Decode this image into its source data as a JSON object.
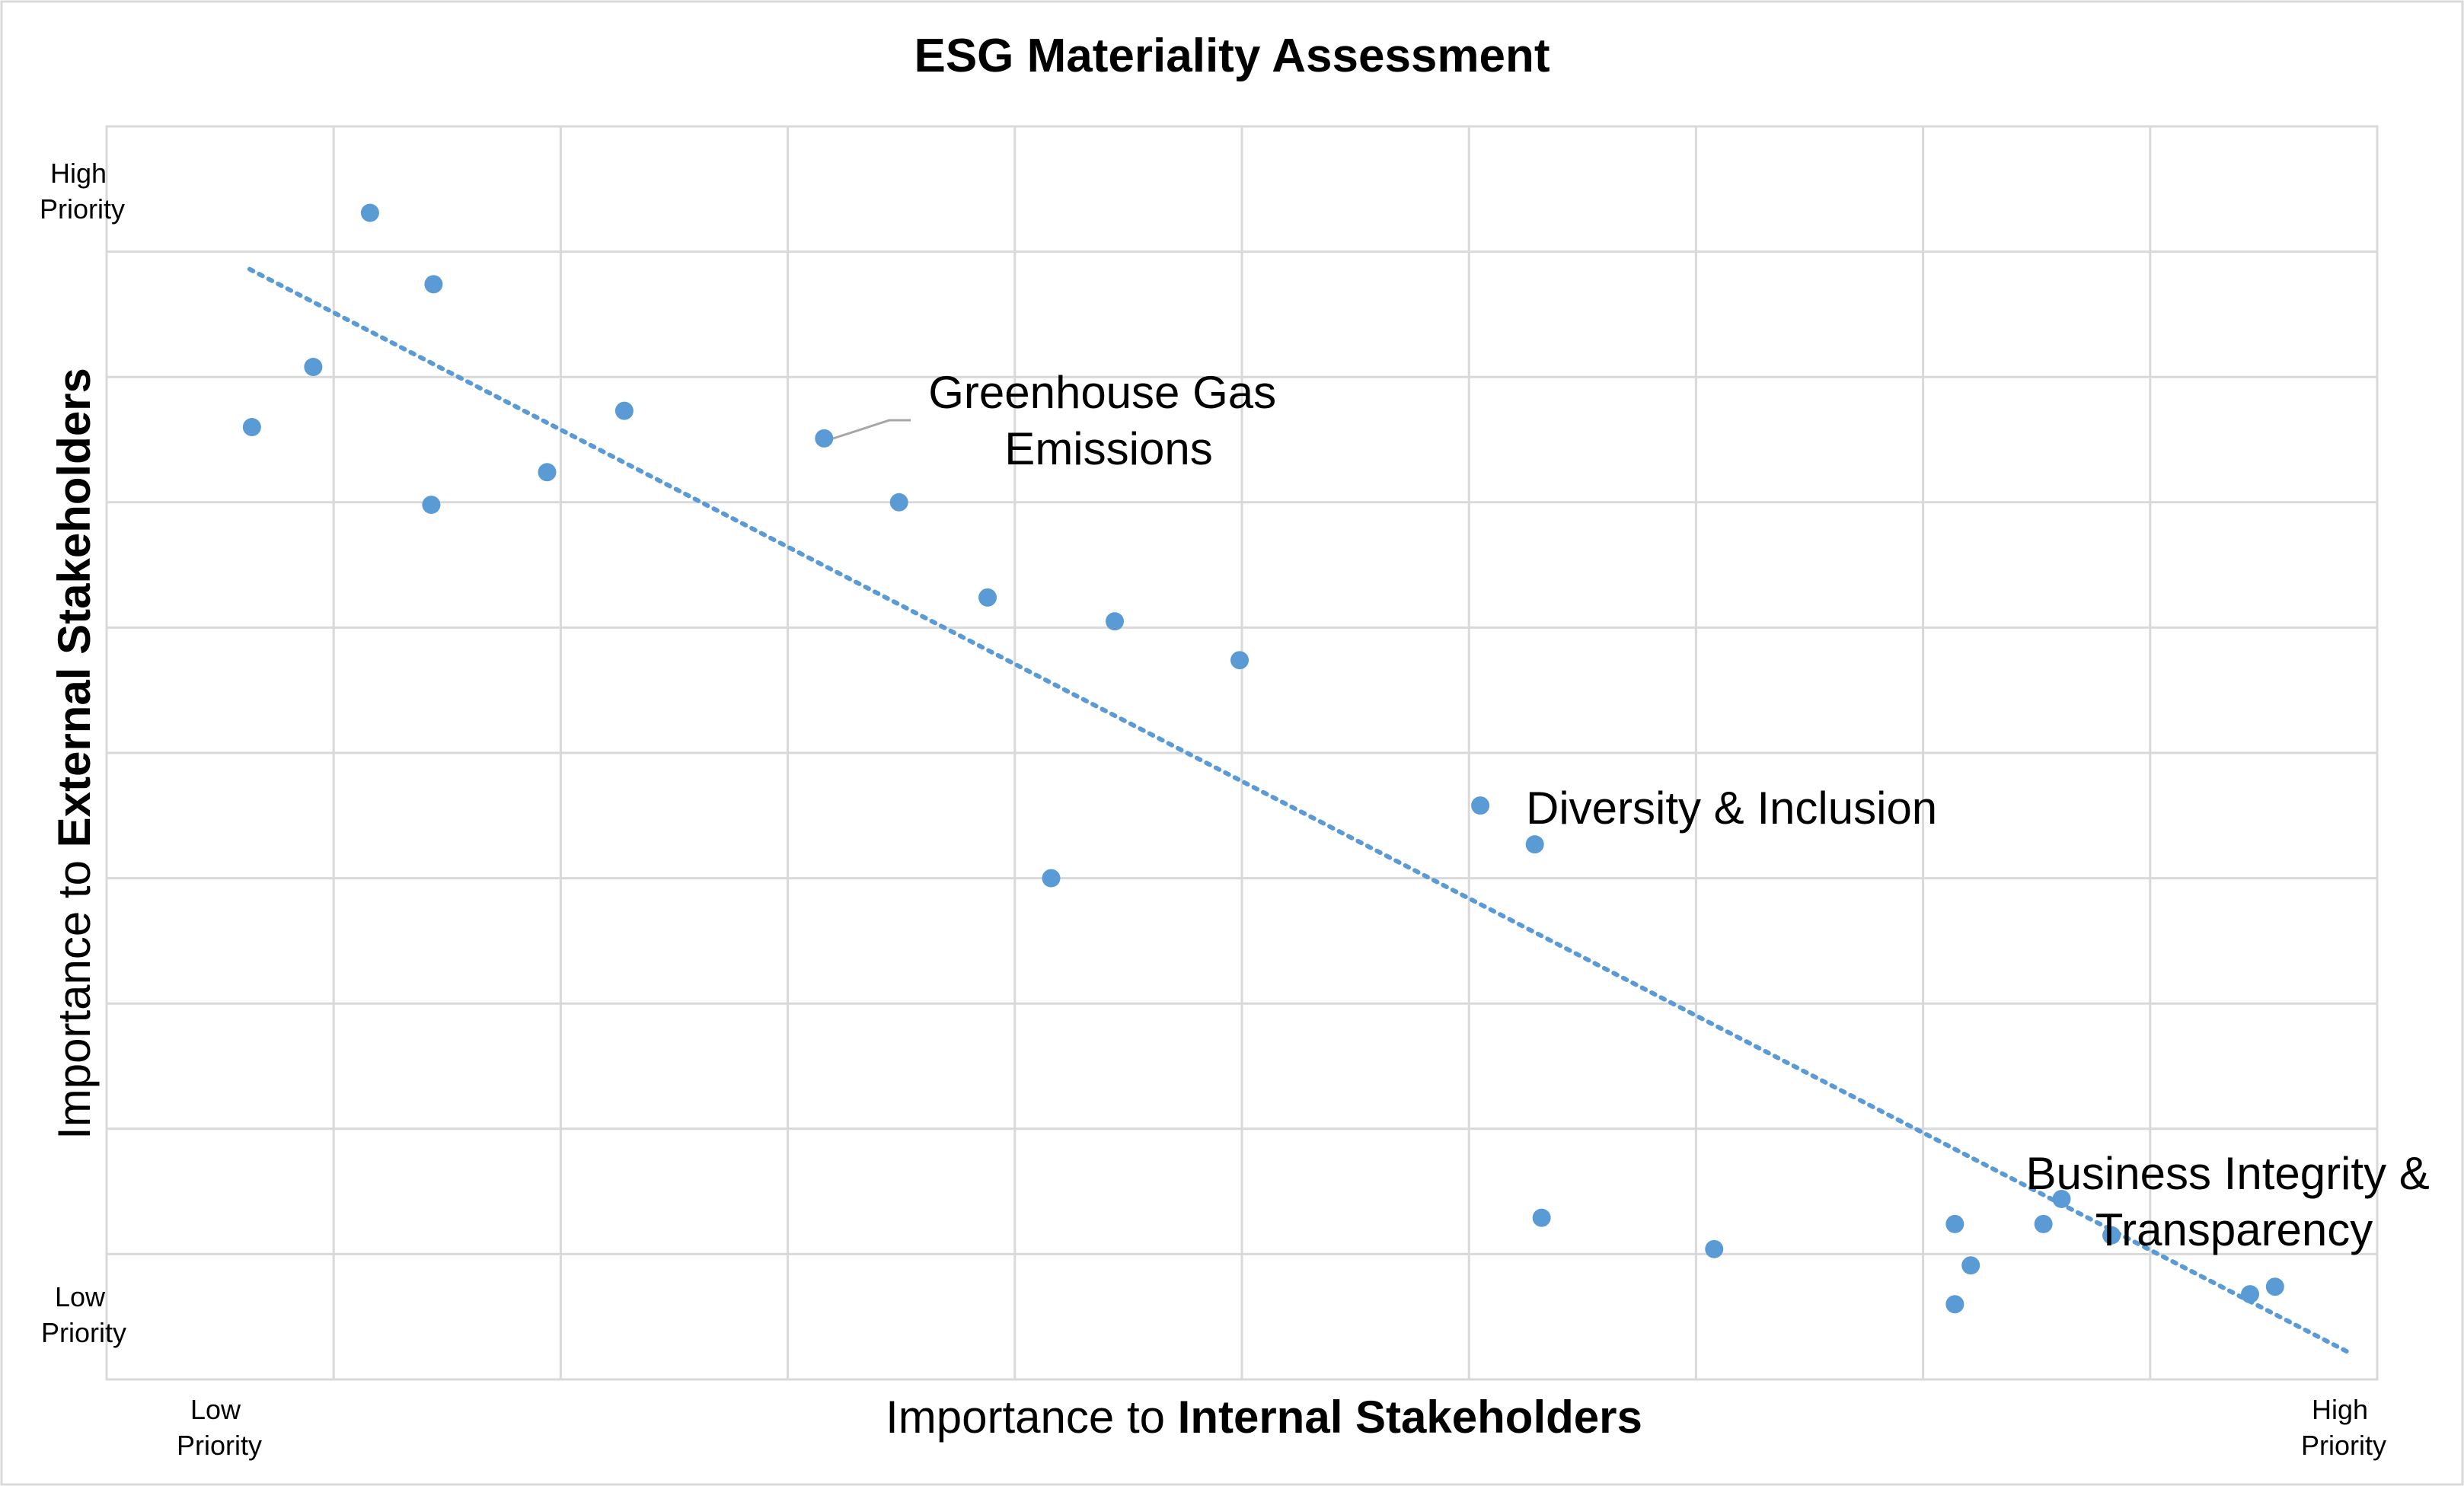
{
  "chart_data": {
    "type": "scatter",
    "title": "ESG Materiality Assessment",
    "xlabel": {
      "prefix": "Importance to ",
      "bold": "Internal Stakeholders"
    },
    "ylabel": {
      "prefix": "Importance to ",
      "bold": "External Stakeholders"
    },
    "x_tick_labels": {
      "low": [
        "Low",
        "Priority"
      ],
      "high": [
        "High",
        "Priority"
      ]
    },
    "y_tick_labels": {
      "low": [
        "Low",
        "Priority"
      ],
      "high": [
        "High",
        "Priority"
      ]
    },
    "xlim": [
      0,
      10
    ],
    "ylim": [
      0,
      10
    ],
    "grid": true,
    "marker_color": "#5b9bd5",
    "trendline": {
      "style": "dotted",
      "color": "#5b9bd5",
      "start": [
        0.63,
        8.86
      ],
      "end": [
        9.87,
        0.22
      ]
    },
    "points": [
      {
        "x": 1.16,
        "y": 9.31
      },
      {
        "x": 1.44,
        "y": 8.74
      },
      {
        "x": 0.91,
        "y": 8.08
      },
      {
        "x": 0.64,
        "y": 7.6
      },
      {
        "x": 2.28,
        "y": 7.73
      },
      {
        "x": 1.94,
        "y": 7.24
      },
      {
        "x": 1.43,
        "y": 6.98
      },
      {
        "x": 3.16,
        "y": 7.51,
        "label": "Greenhouse Gas Emissions"
      },
      {
        "x": 3.49,
        "y": 7.0
      },
      {
        "x": 3.88,
        "y": 6.24
      },
      {
        "x": 4.44,
        "y": 6.05
      },
      {
        "x": 4.99,
        "y": 5.74
      },
      {
        "x": 4.16,
        "y": 4.0
      },
      {
        "x": 6.05,
        "y": 4.58,
        "label": "Diversity & Inclusion"
      },
      {
        "x": 6.29,
        "y": 4.27
      },
      {
        "x": 6.32,
        "y": 1.29
      },
      {
        "x": 7.08,
        "y": 1.04
      },
      {
        "x": 8.14,
        "y": 1.24
      },
      {
        "x": 8.21,
        "y": 0.91
      },
      {
        "x": 8.14,
        "y": 0.6
      },
      {
        "x": 8.53,
        "y": 1.24
      },
      {
        "x": 8.61,
        "y": 1.44,
        "label": "Business Integrity & Transparency"
      },
      {
        "x": 8.83,
        "y": 1.15
      },
      {
        "x": 9.44,
        "y": 0.68
      },
      {
        "x": 9.55,
        "y": 0.74
      }
    ],
    "annotations": [
      {
        "lines": [
          "Greenhouse Gas",
          "Emissions"
        ]
      },
      {
        "lines": [
          "Diversity & Inclusion"
        ]
      },
      {
        "lines": [
          "Business Integrity &",
          "Transparency"
        ]
      }
    ]
  }
}
